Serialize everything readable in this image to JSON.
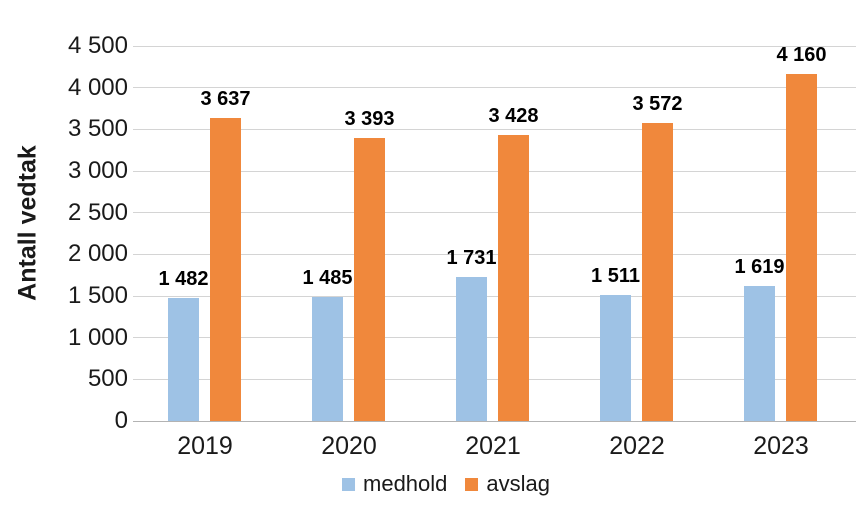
{
  "chart_data": {
    "type": "bar",
    "title": "",
    "xlabel": "",
    "ylabel": "Antall vedtak",
    "categories": [
      "2019",
      "2020",
      "2021",
      "2022",
      "2023"
    ],
    "series": [
      {
        "name": "medhold",
        "color": "#9EC2E5",
        "values": [
          1482,
          1485,
          1731,
          1511,
          1619
        ],
        "value_labels": [
          "1 482",
          "1 485",
          "1 731",
          "1 511",
          "1 619"
        ]
      },
      {
        "name": "avslag",
        "color": "#F0883C",
        "values": [
          3637,
          3393,
          3428,
          3572,
          4160
        ],
        "value_labels": [
          "3 637",
          "3 393",
          "3 428",
          "3 572",
          "4 160"
        ]
      }
    ],
    "ylim": [
      0,
      4500
    ],
    "ytick_step": 500,
    "ytick_labels": [
      "0",
      "500",
      "1 000",
      "1 500",
      "2 000",
      "2 500",
      "3 000",
      "3 500",
      "4 000",
      "4 500"
    ],
    "grid": true,
    "legend_position": "bottom",
    "colors": {
      "gridline": "#D4D4D4",
      "axis_line": "#B3B3B3",
      "text": "#1A1A1A",
      "data_label": "#000000"
    }
  }
}
